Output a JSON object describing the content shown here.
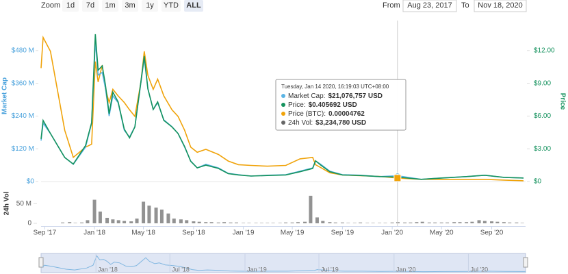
{
  "chart_data": {
    "type": "line",
    "zoom_label": "Zoom",
    "zoom_buttons": [
      "1d",
      "7d",
      "1m",
      "3m",
      "1y",
      "YTD",
      "ALL"
    ],
    "selected_zoom": 6,
    "from_label": "From",
    "from_date": "Aug 23, 2017",
    "to_label": "To",
    "to_date": "Nov 18, 2020",
    "y_title": "Market Cap",
    "y2_title": "Price",
    "x": [
      "2017-08-23",
      "2017-08-28",
      "2017-09-15",
      "2017-10-20",
      "2017-11-10",
      "2017-12-10",
      "2017-12-25",
      "2018-01-03",
      "2018-01-10",
      "2018-01-20",
      "2018-01-28",
      "2018-02-06",
      "2018-02-15",
      "2018-02-28",
      "2018-03-15",
      "2018-03-28",
      "2018-04-10",
      "2018-04-25",
      "2018-05-03",
      "2018-05-12",
      "2018-05-25",
      "2018-06-05",
      "2018-06-20",
      "2018-07-10",
      "2018-07-25",
      "2018-08-10",
      "2018-08-25",
      "2018-09-10",
      "2018-10-01",
      "2018-11-01",
      "2018-11-25",
      "2018-12-20",
      "2019-01-20",
      "2019-03-01",
      "2019-04-15",
      "2019-05-20",
      "2019-06-20",
      "2019-06-27",
      "2019-07-10",
      "2019-08-01",
      "2019-09-01",
      "2019-10-15",
      "2019-12-01",
      "2020-01-14",
      "2020-03-12",
      "2020-05-01",
      "2020-07-01",
      "2020-08-15",
      "2020-10-01",
      "2020-11-18"
    ],
    "xlim": [
      "2017-08-23",
      "2020-11-18"
    ],
    "xticks": [
      {
        "value": "2017-09-01",
        "label": "Sep '17"
      },
      {
        "value": "2018-01-01",
        "label": "Jan '18"
      },
      {
        "value": "2018-05-01",
        "label": "May '18"
      },
      {
        "value": "2018-09-01",
        "label": "Sep '18"
      },
      {
        "value": "2019-01-01",
        "label": "Jan '19"
      },
      {
        "value": "2019-05-01",
        "label": "May '19"
      },
      {
        "value": "2019-09-01",
        "label": "Sep '19"
      },
      {
        "value": "2020-01-01",
        "label": "Jan '20"
      },
      {
        "value": "2020-05-01",
        "label": "May '20"
      },
      {
        "value": "2020-09-01",
        "label": "Sep '20"
      }
    ],
    "ylim": [
      0,
      590
    ],
    "yticks": [
      {
        "value": 0,
        "label": "$0"
      },
      {
        "value": 120,
        "label": "$120 M"
      },
      {
        "value": 240,
        "label": "$240 M"
      },
      {
        "value": 360,
        "label": "$360 M"
      },
      {
        "value": 480,
        "label": "$480 M"
      }
    ],
    "y2lim": [
      0,
      14.75
    ],
    "y2ticks": [
      {
        "value": 0,
        "label": "$0"
      },
      {
        "value": 3,
        "label": "$3.00"
      },
      {
        "value": 6,
        "label": "$6.00"
      },
      {
        "value": 9,
        "label": "$9.00"
      },
      {
        "value": 12,
        "label": "$12.00"
      }
    ],
    "y3lim": [
      0,
      0.0022
    ],
    "series": [
      {
        "color": "#5ab4e5",
        "values": [
          150,
          214,
          176,
          88,
          63,
          126,
          214,
          515,
          390,
          400,
          340,
          240,
          314,
          289,
          188,
          163,
          201,
          364,
          452,
          339,
          264,
          289,
          226,
          201,
          176,
          126,
          75,
          50,
          63,
          50,
          30,
          25,
          20,
          23,
          25,
          38,
          50,
          75,
          63,
          38,
          25,
          23,
          18,
          21.08,
          8,
          13,
          18,
          23,
          15,
          13
        ]
      },
      {
        "color": "#15925e",
        "axis": "y2",
        "values": [
          3.9,
          5.6,
          4.4,
          2.2,
          1.6,
          3.3,
          5.4,
          13.5,
          10.2,
          10.6,
          8.8,
          6.2,
          8.2,
          7.3,
          4.8,
          4.0,
          5.0,
          9.2,
          11.5,
          8.5,
          6.6,
          7.3,
          5.6,
          5.0,
          4.4,
          3.2,
          1.85,
          1.25,
          1.5,
          1.2,
          0.72,
          0.6,
          0.5,
          0.55,
          0.6,
          0.9,
          1.2,
          1.9,
          1.5,
          0.9,
          0.6,
          0.55,
          0.45,
          0.405692,
          0.2,
          0.32,
          0.45,
          0.58,
          0.38,
          0.32
        ]
      },
      {
        "color": "#f0a30a",
        "axis": "y3",
        "values": [
          0.00155,
          0.00197,
          0.00178,
          0.0007,
          0.00033,
          0.00047,
          0.00051,
          0.00164,
          0.00136,
          0.00159,
          0.00126,
          0.00108,
          0.00126,
          0.00117,
          0.00108,
          0.00098,
          0.00089,
          0.00136,
          0.00178,
          0.00145,
          0.00126,
          0.0014,
          0.00117,
          0.00098,
          0.00089,
          0.0007,
          0.00047,
          0.0004,
          0.00044,
          0.00037,
          0.00028,
          0.00023,
          0.00022,
          0.00021,
          0.00022,
          0.00031,
          0.00033,
          0.00023,
          0.00019,
          0.00012,
          9e-05,
          8e-05,
          7e-05,
          4.762e-05,
          3e-05,
          3e-05,
          3e-05,
          3e-05,
          2e-05,
          1e-05
        ]
      }
    ],
    "volume": {
      "title": "24h Vol",
      "color": "#777777",
      "x": [
        "2017-09-01",
        "2017-09-15",
        "2017-10-01",
        "2017-10-15",
        "2017-11-01",
        "2017-11-15",
        "2017-12-01",
        "2017-12-15",
        "2018-01-01",
        "2018-01-15",
        "2018-02-01",
        "2018-02-15",
        "2018-03-01",
        "2018-03-15",
        "2018-04-01",
        "2018-04-15",
        "2018-05-01",
        "2018-05-15",
        "2018-06-01",
        "2018-06-15",
        "2018-07-01",
        "2018-07-15",
        "2018-08-01",
        "2018-08-15",
        "2018-09-01",
        "2018-09-15",
        "2018-10-01",
        "2018-10-15",
        "2018-11-01",
        "2018-11-15",
        "2018-12-01",
        "2018-12-15",
        "2019-01-01",
        "2019-01-15",
        "2019-02-01",
        "2019-02-15",
        "2019-03-01",
        "2019-03-15",
        "2019-04-01",
        "2019-04-15",
        "2019-05-01",
        "2019-05-15",
        "2019-06-01",
        "2019-06-15",
        "2019-07-01",
        "2019-07-15",
        "2019-08-01",
        "2019-08-15",
        "2019-09-01",
        "2019-09-15",
        "2019-10-01",
        "2019-10-15",
        "2019-11-01",
        "2019-11-15",
        "2019-12-01",
        "2019-12-15",
        "2020-01-01",
        "2020-01-15",
        "2020-02-01",
        "2020-02-15",
        "2020-03-01",
        "2020-03-15",
        "2020-04-01",
        "2020-04-15",
        "2020-05-01",
        "2020-05-15",
        "2020-06-01",
        "2020-06-15",
        "2020-07-01",
        "2020-07-15",
        "2020-08-01",
        "2020-08-15",
        "2020-09-01",
        "2020-09-15",
        "2020-10-01",
        "2020-10-15",
        "2020-11-01",
        "2020-11-15"
      ],
      "values": [
        0,
        0,
        0,
        2,
        3,
        1,
        2,
        8,
        60,
        30,
        14,
        10,
        8,
        6,
        5,
        12,
        55,
        45,
        40,
        35,
        25,
        12,
        10,
        8,
        5,
        4,
        3,
        3,
        2,
        3,
        2,
        2,
        1,
        1,
        1,
        1,
        1,
        1,
        1,
        2,
        2,
        3,
        4,
        70,
        15,
        6,
        3,
        2,
        2,
        1,
        1,
        2,
        1,
        1,
        1,
        1,
        2,
        3,
        2,
        2,
        3,
        4,
        2,
        2,
        2,
        2,
        3,
        3,
        3,
        4,
        8,
        6,
        5,
        4,
        3,
        2,
        2,
        1
      ],
      "ylim": [
        0,
        75
      ],
      "yticks": [
        0,
        {
          "value": 50,
          "label": "50 M"
        }
      ]
    },
    "tooltip": {
      "x": "2020-01-14",
      "title": "Tuesday, Jan 14 2020, 16:19:03 UTC+08:00",
      "items": [
        {
          "label": "Market Cap:",
          "value": "$21,076,757 USD",
          "color": "#5ab4e5"
        },
        {
          "label": "Price:",
          "value": "$0.405692 USD",
          "color": "#15925e"
        },
        {
          "label": "Price (BTC):",
          "value": "0.00004762",
          "color": "#f0a30a"
        },
        {
          "label": "24h Vol:",
          "value": "$3,234,780 USD",
          "color": "#666666"
        }
      ]
    },
    "navigator": {
      "xticks": [
        {
          "value": "2018-01-01",
          "label": "Jan '18"
        },
        {
          "value": "2018-07-01",
          "label": "Jul '18"
        },
        {
          "value": "2019-01-01",
          "label": "Jan '19"
        },
        {
          "value": "2019-07-01",
          "label": "Jul '19"
        },
        {
          "value": "2020-01-01",
          "label": "Jan '20"
        },
        {
          "value": "2020-07-01",
          "label": "Jul '20"
        }
      ]
    }
  }
}
